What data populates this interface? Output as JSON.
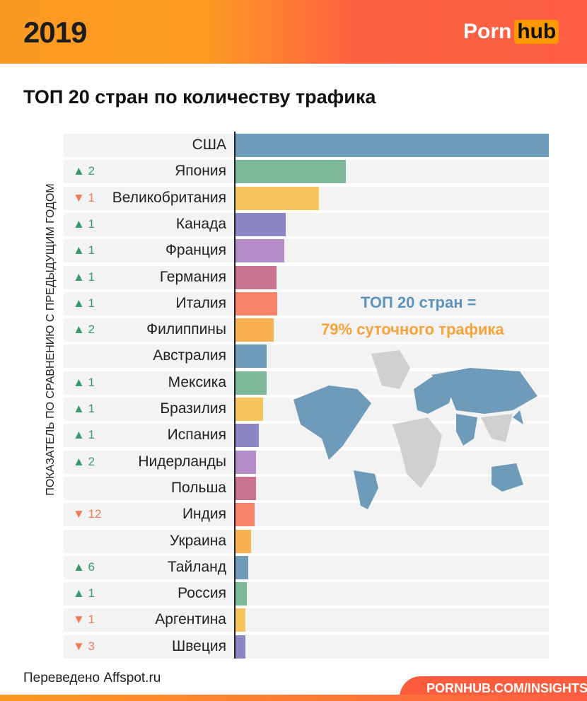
{
  "header": {
    "year": "2019",
    "logo_part1": "Porn",
    "logo_part2": "hub"
  },
  "chart_data": {
    "type": "bar",
    "orientation": "horizontal",
    "title": "ТОП 20 стран по количеству трафика",
    "ylabel": "ПОКАЗАТЕЛЬ ПО СРАВНЕНИЮ С ПРЕДЫДУЩИМ ГОДОМ",
    "categories": [
      "США",
      "Япония",
      "Великобритания",
      "Канада",
      "Франция",
      "Германия",
      "Италия",
      "Филиппины",
      "Австралия",
      "Мексика",
      "Бразилия",
      "Испания",
      "Нидерланды",
      "Польша",
      "Индия",
      "Украина",
      "Тайланд",
      "Россия",
      "Аргентина",
      "Швеция"
    ],
    "values": [
      100,
      35.2,
      26.6,
      16,
      15.6,
      13.1,
      13.3,
      12.2,
      9.9,
      9.9,
      8.8,
      7.4,
      6.5,
      6.5,
      6.1,
      5,
      4.1,
      3.6,
      3.2,
      3.2
    ],
    "value_scale": "relative to США = 100 (no axis printed)",
    "changes": [
      null,
      "▲ 2",
      "▼ 1",
      "▲ 1",
      "▲ 1",
      "▲ 1",
      "▲ 1",
      "▲ 2",
      null,
      "▲ 1",
      "▲ 1",
      "▲ 1",
      "▲ 2",
      null,
      "▼ 12",
      null,
      "▲ 6",
      "▲ 1",
      "▼ 1",
      "▼ 3"
    ],
    "colors": [
      "#6f9bbb",
      "#7db89a",
      "#f6c65c",
      "#8a87c4",
      "#b48dc8",
      "#c9748f",
      "#f7836a",
      "#f9b152"
    ],
    "annotation_line1": "ТОП 20 стран =",
    "annotation_line2": "79% суточного трафика",
    "grid": false
  },
  "footer": {
    "credit": "Переведено Affspot.ru",
    "source": "PORNHUB.COM/INSIGHTS"
  }
}
